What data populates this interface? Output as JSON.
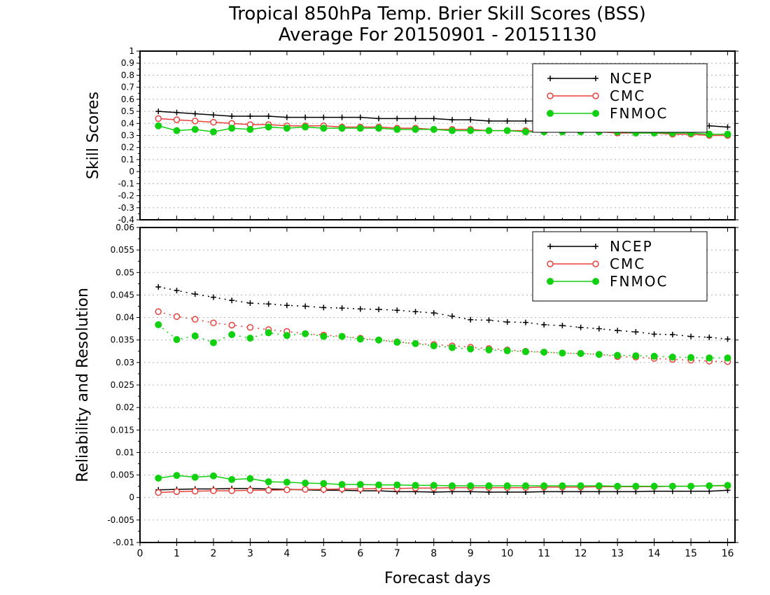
{
  "title_line1": "Tropical 850hPa Temp. Brier Skill Scores (BSS)",
  "title_line2": "Average For 20150901 - 20151130",
  "xlabel": "Forecast days",
  "colors": {
    "NCEP": "#000000",
    "CMC": "#e8403a",
    "FNMOC": "#10d010",
    "grid": "#b0b0b0"
  },
  "chart_data": [
    {
      "type": "line",
      "ylabel": "Skill Scores",
      "xlim": [
        0,
        16.2
      ],
      "ylim": [
        -0.4,
        1.0
      ],
      "xticks": [
        0,
        1,
        2,
        3,
        4,
        5,
        6,
        7,
        8,
        9,
        10,
        11,
        12,
        13,
        14,
        15,
        16
      ],
      "xticklabels": [
        "0",
        "1",
        "2",
        "3",
        "4",
        "5",
        "6",
        "7",
        "8",
        "9",
        "10",
        "11",
        "12",
        "13",
        "14",
        "15",
        "16"
      ],
      "yticks": [
        -0.4,
        -0.3,
        -0.2,
        -0.1,
        0,
        0.1,
        0.2,
        0.3,
        0.4,
        0.5,
        0.6,
        0.7,
        0.8,
        0.9,
        1
      ],
      "yticklabels": [
        "-0.4",
        "-0.3",
        "-0.2",
        "-0.1",
        "0",
        "0.1",
        "0.2",
        "0.3",
        "0.4",
        "0.5",
        "0.6",
        "0.7",
        "0.8",
        "0.9",
        "1"
      ],
      "grid": true,
      "legend_position": "top-right",
      "x": [
        0.5,
        1,
        1.5,
        2,
        2.5,
        3,
        3.5,
        4,
        4.5,
        5,
        5.5,
        6,
        6.5,
        7,
        7.5,
        8,
        8.5,
        9,
        9.5,
        10,
        10.5,
        11,
        11.5,
        12,
        12.5,
        13,
        13.5,
        14,
        14.5,
        15,
        15.5,
        16
      ],
      "series": [
        {
          "name": "NCEP",
          "style": "solid",
          "marker": "plus",
          "values": [
            0.5,
            0.49,
            0.48,
            0.47,
            0.46,
            0.46,
            0.46,
            0.45,
            0.45,
            0.45,
            0.45,
            0.45,
            0.44,
            0.44,
            0.44,
            0.44,
            0.43,
            0.43,
            0.42,
            0.42,
            0.42,
            0.42,
            0.41,
            0.41,
            0.41,
            0.4,
            0.4,
            0.39,
            0.39,
            0.38,
            0.38,
            0.37
          ]
        },
        {
          "name": "CMC",
          "style": "solid",
          "marker": "open-circle",
          "values": [
            0.44,
            0.43,
            0.42,
            0.41,
            0.4,
            0.39,
            0.39,
            0.38,
            0.38,
            0.38,
            0.37,
            0.37,
            0.37,
            0.36,
            0.36,
            0.35,
            0.35,
            0.35,
            0.34,
            0.34,
            0.34,
            0.33,
            0.33,
            0.33,
            0.33,
            0.32,
            0.32,
            0.32,
            0.31,
            0.31,
            0.3,
            0.3
          ]
        },
        {
          "name": "FNMOC",
          "style": "solid",
          "marker": "filled-circle",
          "values": [
            0.38,
            0.34,
            0.35,
            0.33,
            0.36,
            0.35,
            0.37,
            0.36,
            0.37,
            0.36,
            0.36,
            0.36,
            0.36,
            0.35,
            0.35,
            0.35,
            0.34,
            0.34,
            0.34,
            0.34,
            0.33,
            0.33,
            0.33,
            0.33,
            0.33,
            0.33,
            0.32,
            0.32,
            0.32,
            0.32,
            0.31,
            0.31
          ]
        }
      ]
    },
    {
      "type": "line",
      "ylabel": "Reliability and Resolution",
      "xlim": [
        0,
        16.2
      ],
      "ylim": [
        -0.01,
        0.06
      ],
      "xticks": [
        0,
        1,
        2,
        3,
        4,
        5,
        6,
        7,
        8,
        9,
        10,
        11,
        12,
        13,
        14,
        15,
        16
      ],
      "xticklabels": [
        "0",
        "1",
        "2",
        "3",
        "4",
        "5",
        "6",
        "7",
        "8",
        "9",
        "10",
        "11",
        "12",
        "13",
        "14",
        "15",
        "16"
      ],
      "yticks": [
        -0.01,
        -0.005,
        0,
        0.005,
        0.01,
        0.015,
        0.02,
        0.025,
        0.03,
        0.035,
        0.04,
        0.045,
        0.05,
        0.055,
        0.06
      ],
      "yticklabels": [
        "-0.01",
        "-0.005",
        "0",
        "0.005",
        "0.01",
        "0.015",
        "0.02",
        "0.025",
        "0.03",
        "0.035",
        "0.04",
        "0.045",
        "0.05",
        "0.055",
        "0.06"
      ],
      "grid": true,
      "legend_position": "top-right",
      "x": [
        0.5,
        1,
        1.5,
        2,
        2.5,
        3,
        3.5,
        4,
        4.5,
        5,
        5.5,
        6,
        6.5,
        7,
        7.5,
        8,
        8.5,
        9,
        9.5,
        10,
        10.5,
        11,
        11.5,
        12,
        12.5,
        13,
        13.5,
        14,
        14.5,
        15,
        15.5,
        16
      ],
      "series": [
        {
          "name": "NCEP",
          "style": "dotted",
          "marker": "plus",
          "values": [
            0.0468,
            0.046,
            0.0452,
            0.0445,
            0.0438,
            0.0432,
            0.043,
            0.0427,
            0.0425,
            0.0422,
            0.0421,
            0.0419,
            0.0418,
            0.0416,
            0.0413,
            0.041,
            0.0403,
            0.0395,
            0.0394,
            0.039,
            0.0389,
            0.0384,
            0.0382,
            0.0378,
            0.0375,
            0.0371,
            0.0368,
            0.0363,
            0.0362,
            0.0358,
            0.0356,
            0.0352
          ]
        },
        {
          "name": "CMC",
          "style": "dotted",
          "marker": "open-circle",
          "values": [
            0.0413,
            0.0402,
            0.0396,
            0.0388,
            0.0383,
            0.0378,
            0.0373,
            0.0369,
            0.0364,
            0.0361,
            0.0358,
            0.0354,
            0.035,
            0.0346,
            0.0342,
            0.034,
            0.0337,
            0.0334,
            0.0331,
            0.0328,
            0.0325,
            0.0323,
            0.0321,
            0.032,
            0.0318,
            0.0313,
            0.0312,
            0.0309,
            0.0307,
            0.0305,
            0.0303,
            0.0302
          ]
        },
        {
          "name": "FNMOC",
          "style": "dotted",
          "marker": "filled-circle",
          "values": [
            0.0384,
            0.0351,
            0.0359,
            0.0344,
            0.0362,
            0.0354,
            0.0366,
            0.036,
            0.0364,
            0.0358,
            0.0358,
            0.0352,
            0.035,
            0.0345,
            0.0342,
            0.0337,
            0.0333,
            0.033,
            0.0328,
            0.0326,
            0.0324,
            0.0323,
            0.0321,
            0.032,
            0.0318,
            0.0316,
            0.0315,
            0.0314,
            0.0312,
            0.0311,
            0.031,
            0.031
          ]
        },
        {
          "name": "NCEP",
          "style": "solid",
          "marker": "plus",
          "in_legend": false,
          "values": [
            0.0017,
            0.0018,
            0.0019,
            0.0019,
            0.002,
            0.002,
            0.0019,
            0.0018,
            0.0017,
            0.0016,
            0.0016,
            0.0015,
            0.0015,
            0.0013,
            0.0013,
            0.0012,
            0.0013,
            0.0013,
            0.0012,
            0.0012,
            0.0012,
            0.0013,
            0.0013,
            0.0013,
            0.0013,
            0.0013,
            0.0013,
            0.0014,
            0.0014,
            0.0014,
            0.0014,
            0.0016
          ]
        },
        {
          "name": "CMC",
          "style": "solid",
          "marker": "open-circle",
          "in_legend": false,
          "values": [
            0.0011,
            0.0013,
            0.0014,
            0.0015,
            0.0015,
            0.0016,
            0.0016,
            0.0017,
            0.0018,
            0.0018,
            0.0019,
            0.0019,
            0.002,
            0.002,
            0.0021,
            0.0021,
            0.0022,
            0.0022,
            0.0022,
            0.0022,
            0.0022,
            0.0023,
            0.0023,
            0.0023,
            0.0024,
            0.0024,
            0.0024,
            0.0024,
            0.0025,
            0.0025,
            0.0026,
            0.0026
          ]
        },
        {
          "name": "FNMOC",
          "style": "solid",
          "marker": "filled-circle",
          "in_legend": false,
          "values": [
            0.0043,
            0.0049,
            0.0045,
            0.0048,
            0.004,
            0.0042,
            0.0035,
            0.0034,
            0.0032,
            0.0031,
            0.0029,
            0.0029,
            0.0028,
            0.0028,
            0.0027,
            0.0027,
            0.0026,
            0.0026,
            0.0026,
            0.0026,
            0.0026,
            0.0026,
            0.0026,
            0.0026,
            0.0026,
            0.0025,
            0.0025,
            0.0025,
            0.0025,
            0.0025,
            0.0026,
            0.0027
          ]
        }
      ]
    }
  ]
}
